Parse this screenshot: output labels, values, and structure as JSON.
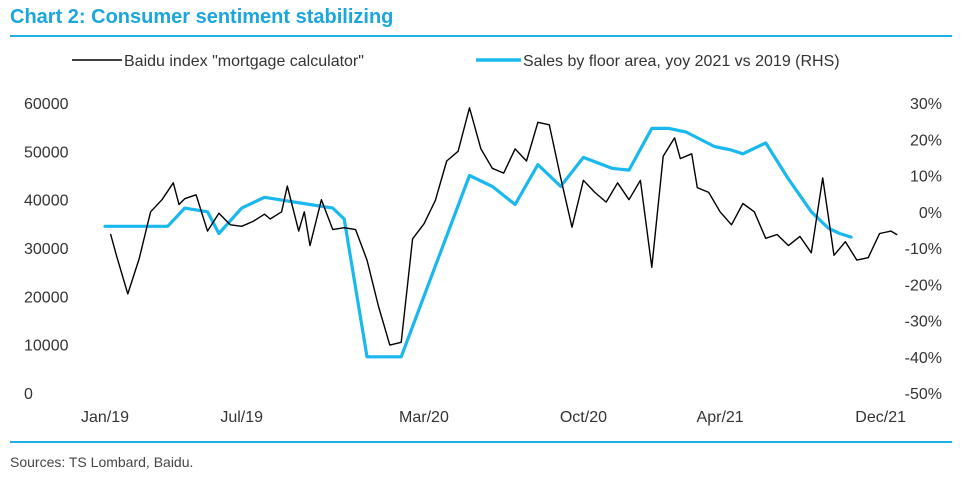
{
  "title": "Chart 2: Consumer sentiment stabilizing",
  "sources": "Sources: TS Lombard, Baidu.",
  "colors": {
    "title": "#1aa6de",
    "rule": "#1ab0e6",
    "series_left": "#000000",
    "series_right": "#19b8ee"
  },
  "chart_data": {
    "type": "line",
    "title": "Chart 2: Consumer sentiment stabilizing",
    "legend_position": "top",
    "x_range": [
      0,
      34.5
    ],
    "x_ticks": [
      {
        "label": "Jan/19",
        "x": 0
      },
      {
        "label": "Jul/19",
        "x": 6
      },
      {
        "label": "Mar/20",
        "x": 14
      },
      {
        "label": "Oct/20",
        "x": 21
      },
      {
        "label": "Apr/21",
        "x": 27
      },
      {
        "label": "Dec/21",
        "x": 35
      }
    ],
    "y_left": {
      "range": [
        0,
        60000
      ],
      "ticks": [
        "60000",
        "50000",
        "40000",
        "30000",
        "20000",
        "10000",
        "0"
      ],
      "tick_values": [
        60000,
        50000,
        40000,
        30000,
        20000,
        10000,
        0
      ]
    },
    "y_right": {
      "range": [
        -50,
        30
      ],
      "ticks": [
        "30%",
        "20%",
        "10%",
        "0%",
        "-10%",
        "-20%",
        "-30%",
        "-40%",
        "-50%"
      ],
      "tick_values": [
        30,
        20,
        10,
        0,
        -10,
        -20,
        -30,
        -40,
        -50
      ]
    },
    "series": [
      {
        "name": "Baidu index \"mortgage calculator\"",
        "axis": "left",
        "x": [
          0.25,
          0.5,
          1,
          1.5,
          2,
          2.5,
          3,
          3.25,
          3.5,
          4,
          4.5,
          5,
          5.5,
          6,
          6.5,
          7,
          7.25,
          7.75,
          8,
          8.5,
          8.75,
          9,
          9.5,
          10,
          10.5,
          11,
          11.5,
          12,
          12.5,
          13,
          13.5,
          14,
          14.5,
          15,
          15.5,
          16,
          16.5,
          17,
          17.5,
          18,
          18.5,
          19,
          19.5,
          20,
          20.5,
          21,
          21.5,
          22,
          22.5,
          23,
          23.5,
          24,
          24.5,
          25,
          25.25,
          25.75,
          26,
          26.5,
          27,
          27.5,
          28,
          28.5,
          29,
          29.5,
          30,
          30.5,
          31,
          31.5,
          32,
          32.5,
          33,
          33.5,
          34,
          34.5,
          34.75
        ],
        "values": [
          32800,
          28500,
          20500,
          27800,
          37500,
          40000,
          43500,
          39000,
          40200,
          41000,
          33500,
          37200,
          34800,
          34500,
          35500,
          37000,
          36000,
          37500,
          42800,
          33500,
          37500,
          30500,
          40000,
          33800,
          34200,
          33800,
          27500,
          18000,
          9900,
          10500,
          31900,
          35000,
          39800,
          48000,
          50000,
          59000,
          50500,
          46500,
          45500,
          50500,
          48000,
          56000,
          55500,
          44500,
          34300,
          44000,
          41500,
          39500,
          43500,
          40000,
          44000,
          26000,
          49000,
          52800,
          48500,
          49500,
          42500,
          41500,
          37500,
          34800,
          39200,
          37500,
          32000,
          32800,
          30500,
          32400,
          29000,
          44500,
          28500,
          31300,
          27500,
          28000,
          33000,
          33500,
          32800
        ],
        "color": "#000000"
      },
      {
        "name": "Sales by floor area, yoy 2021 vs 2019 (RHS)",
        "axis": "right",
        "x": [
          0,
          1.5,
          2.75,
          3.5,
          4.5,
          5,
          6,
          7,
          8,
          9,
          10,
          10.5,
          11.5,
          12,
          13,
          14.5,
          16,
          17,
          18,
          19,
          20,
          21,
          22.25,
          23,
          24,
          24.75,
          25.5,
          26.75,
          27.5,
          28,
          29,
          30,
          31,
          31.75,
          32.25,
          32.75
        ],
        "values": [
          -4,
          -4,
          -4,
          1,
          0,
          -6,
          1,
          4,
          3,
          2,
          1,
          -2,
          -40,
          -40,
          -40,
          -15,
          10,
          7,
          2,
          13,
          7,
          15,
          12,
          11.5,
          23,
          23,
          22,
          18,
          17,
          16,
          19,
          9,
          0,
          -4.5,
          -6,
          -7
        ],
        "color": "#19b8ee"
      }
    ]
  }
}
